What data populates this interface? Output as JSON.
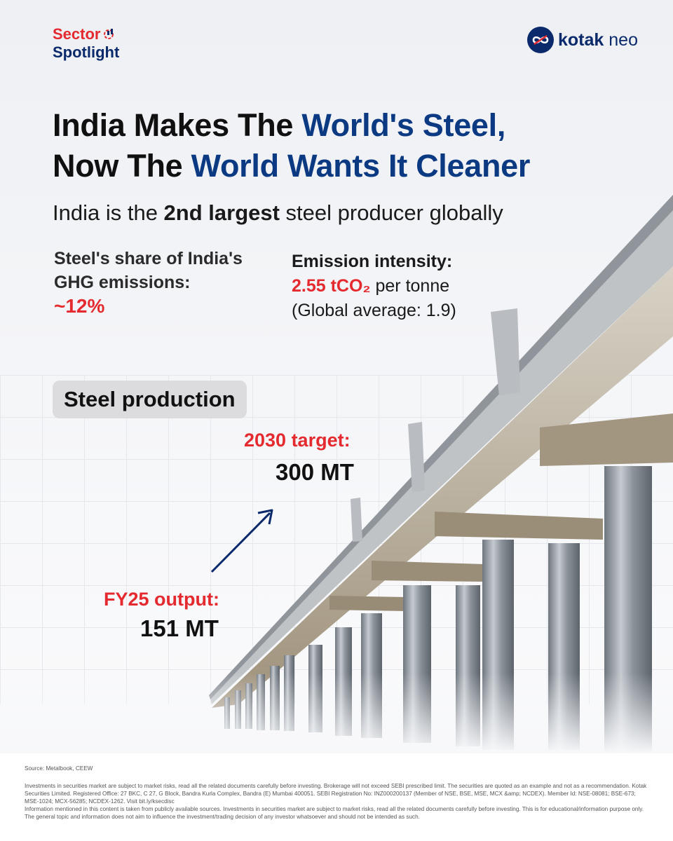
{
  "brand": {
    "sector_line1": "Sector",
    "sector_line2": "Spotlight",
    "kotak_bold": "kotak",
    "kotak_light": "neo"
  },
  "headline": {
    "line1_dark": "India Makes The ",
    "line1_blue": "World's Steel,",
    "line2_dark": "Now The ",
    "line2_blue": "World Wants It Cleaner"
  },
  "subhead": {
    "pre": "India is the ",
    "bold": "2nd largest",
    "post": " steel producer globally"
  },
  "stat_share": {
    "line1": "Steel's share of India's",
    "line2": "GHG emissions:",
    "value": "~12%"
  },
  "stat_intensity": {
    "title": "Emission intensity:",
    "value": "2.55 tCO₂",
    "value_suffix": " per tonne",
    "global": "(Global average: 1.9)"
  },
  "production": {
    "pill": "Steel production",
    "target_label": "2030 target:",
    "target_value": "300 MT",
    "fy_label": "FY25 output:",
    "fy_value": "151 MT"
  },
  "footer": {
    "source": "Source: Metalbook, CEEW",
    "disclaimer": "Investments in securities market are subject to market risks, read all the related documents carefully before investing. Brokerage will not exceed SEBI prescribed limit. The securities are quoted as an example and not as a recommendation. Kotak Securities Limited. Registered Office: 27 BKC, C 27, G Block, Bandra Kurla Complex, Bandra (E) Mumbai 400051. SEBI Registration No: INZ000200137 (Member of NSE, BSE, MSE, MCX &amp; NCDEX). Member Id: NSE-08081; BSE-673; MSE-1024; MCX-56285; NCDEX-1262. Visit bit.ly/ksecdisc",
    "disclaimer2": "Information mentioned in this content is taken from publicly available sources. Investments in securities market are subject to market risks, read all the related documents carefully before investing. This is for educational/information purpose only. The general topic and information does not aim to influence the investment/trading decision of any investor whatsoever and should not be intended as such."
  },
  "colors": {
    "red": "#e42a2f",
    "navy": "#0b2a6b",
    "blue": "#0b3a82"
  },
  "icons": {
    "sector_icon": "gear-chart-icon",
    "kotak_icon": "kotak-infinity-icon",
    "arrow": "arrow-up-right-icon"
  }
}
